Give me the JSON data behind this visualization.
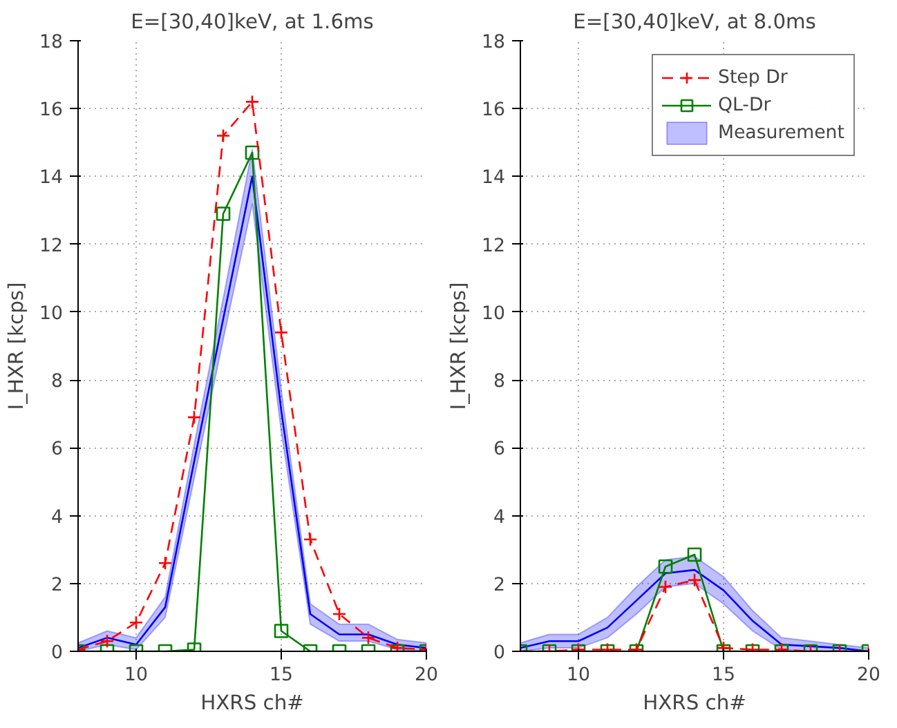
{
  "chart_data": [
    {
      "type": "line",
      "title": "E=[30,40]keV, at 1.6ms",
      "xlabel": "HXRS ch#",
      "ylabel": "I_HXR [kcps]",
      "x": [
        8,
        9,
        10,
        11,
        12,
        13,
        14,
        15,
        16,
        17,
        18,
        19,
        20
      ],
      "xlim": [
        8,
        20
      ],
      "xticks": [
        10,
        15,
        20
      ],
      "ylim": [
        0,
        18
      ],
      "yticks": [
        0,
        2,
        4,
        6,
        8,
        10,
        12,
        14,
        16,
        18
      ],
      "grid": true,
      "series": [
        {
          "color": "#ff0000",
          "marker": "cross",
          "line_style": "dashed",
          "values": [
            0.05,
            0.3,
            0.85,
            2.6,
            6.9,
            15.2,
            16.2,
            9.4,
            3.3,
            1.1,
            0.4,
            0.1,
            0.05
          ]
        },
        {
          "color": "#008000",
          "marker": "square",
          "line_style": "solid",
          "values": [
            0,
            0,
            0,
            0,
            0.05,
            12.9,
            14.7,
            0.6,
            0,
            0,
            0,
            0,
            0
          ]
        },
        {
          "color": "#0000ff",
          "marker": "none",
          "line_style": "solid",
          "values": [
            0.1,
            0.4,
            0.2,
            1.3,
            5.6,
            9.8,
            14.0,
            7.1,
            1.1,
            0.5,
            0.5,
            0.2,
            0.1
          ],
          "lower": [
            0,
            0.2,
            0.05,
            1.0,
            5.1,
            9.2,
            13.2,
            6.5,
            0.8,
            0.3,
            0.3,
            0.05,
            0
          ],
          "upper": [
            0.25,
            0.6,
            0.4,
            1.6,
            6.1,
            10.4,
            14.8,
            7.7,
            1.4,
            0.8,
            0.8,
            0.35,
            0.25
          ]
        }
      ]
    },
    {
      "type": "line",
      "title": "E=[30,40]keV, at 8.0ms",
      "xlabel": "HXRS ch#",
      "ylabel": "I_HXR [kcps]",
      "x": [
        8,
        9,
        10,
        11,
        12,
        13,
        14,
        15,
        16,
        17,
        18,
        19,
        20
      ],
      "xlim": [
        8,
        20
      ],
      "xticks": [
        10,
        15,
        20
      ],
      "ylim": [
        0,
        18
      ],
      "yticks": [
        0,
        2,
        4,
        6,
        8,
        10,
        12,
        14,
        16,
        18
      ],
      "grid": true,
      "legend": "top right",
      "series": [
        {
          "name": "Step Dr",
          "color": "#ff0000",
          "marker": "cross",
          "line_style": "dashed",
          "values": [
            0,
            0,
            0.05,
            0.05,
            0.05,
            1.9,
            2.1,
            0.1,
            0.05,
            0.05,
            0,
            0,
            0
          ]
        },
        {
          "name": "QL-Dr",
          "color": "#008000",
          "marker": "square",
          "line_style": "solid",
          "values": [
            0,
            0,
            0,
            0,
            0,
            2.5,
            2.85,
            0,
            0,
            0,
            0,
            0,
            0
          ]
        },
        {
          "name": "Measurement",
          "color": "#0000ff",
          "marker": "none",
          "line_style": "solid",
          "values": [
            0.1,
            0.3,
            0.3,
            0.7,
            1.5,
            2.3,
            2.4,
            1.8,
            0.9,
            0.2,
            0.15,
            0.1,
            0
          ],
          "lower": [
            0,
            0.1,
            0.1,
            0.4,
            1.1,
            1.9,
            2.0,
            1.4,
            0.6,
            0.05,
            0,
            0,
            0
          ],
          "upper": [
            0.25,
            0.5,
            0.5,
            1.0,
            1.9,
            2.7,
            2.8,
            2.2,
            1.2,
            0.4,
            0.3,
            0.2,
            0.1
          ]
        }
      ]
    }
  ]
}
